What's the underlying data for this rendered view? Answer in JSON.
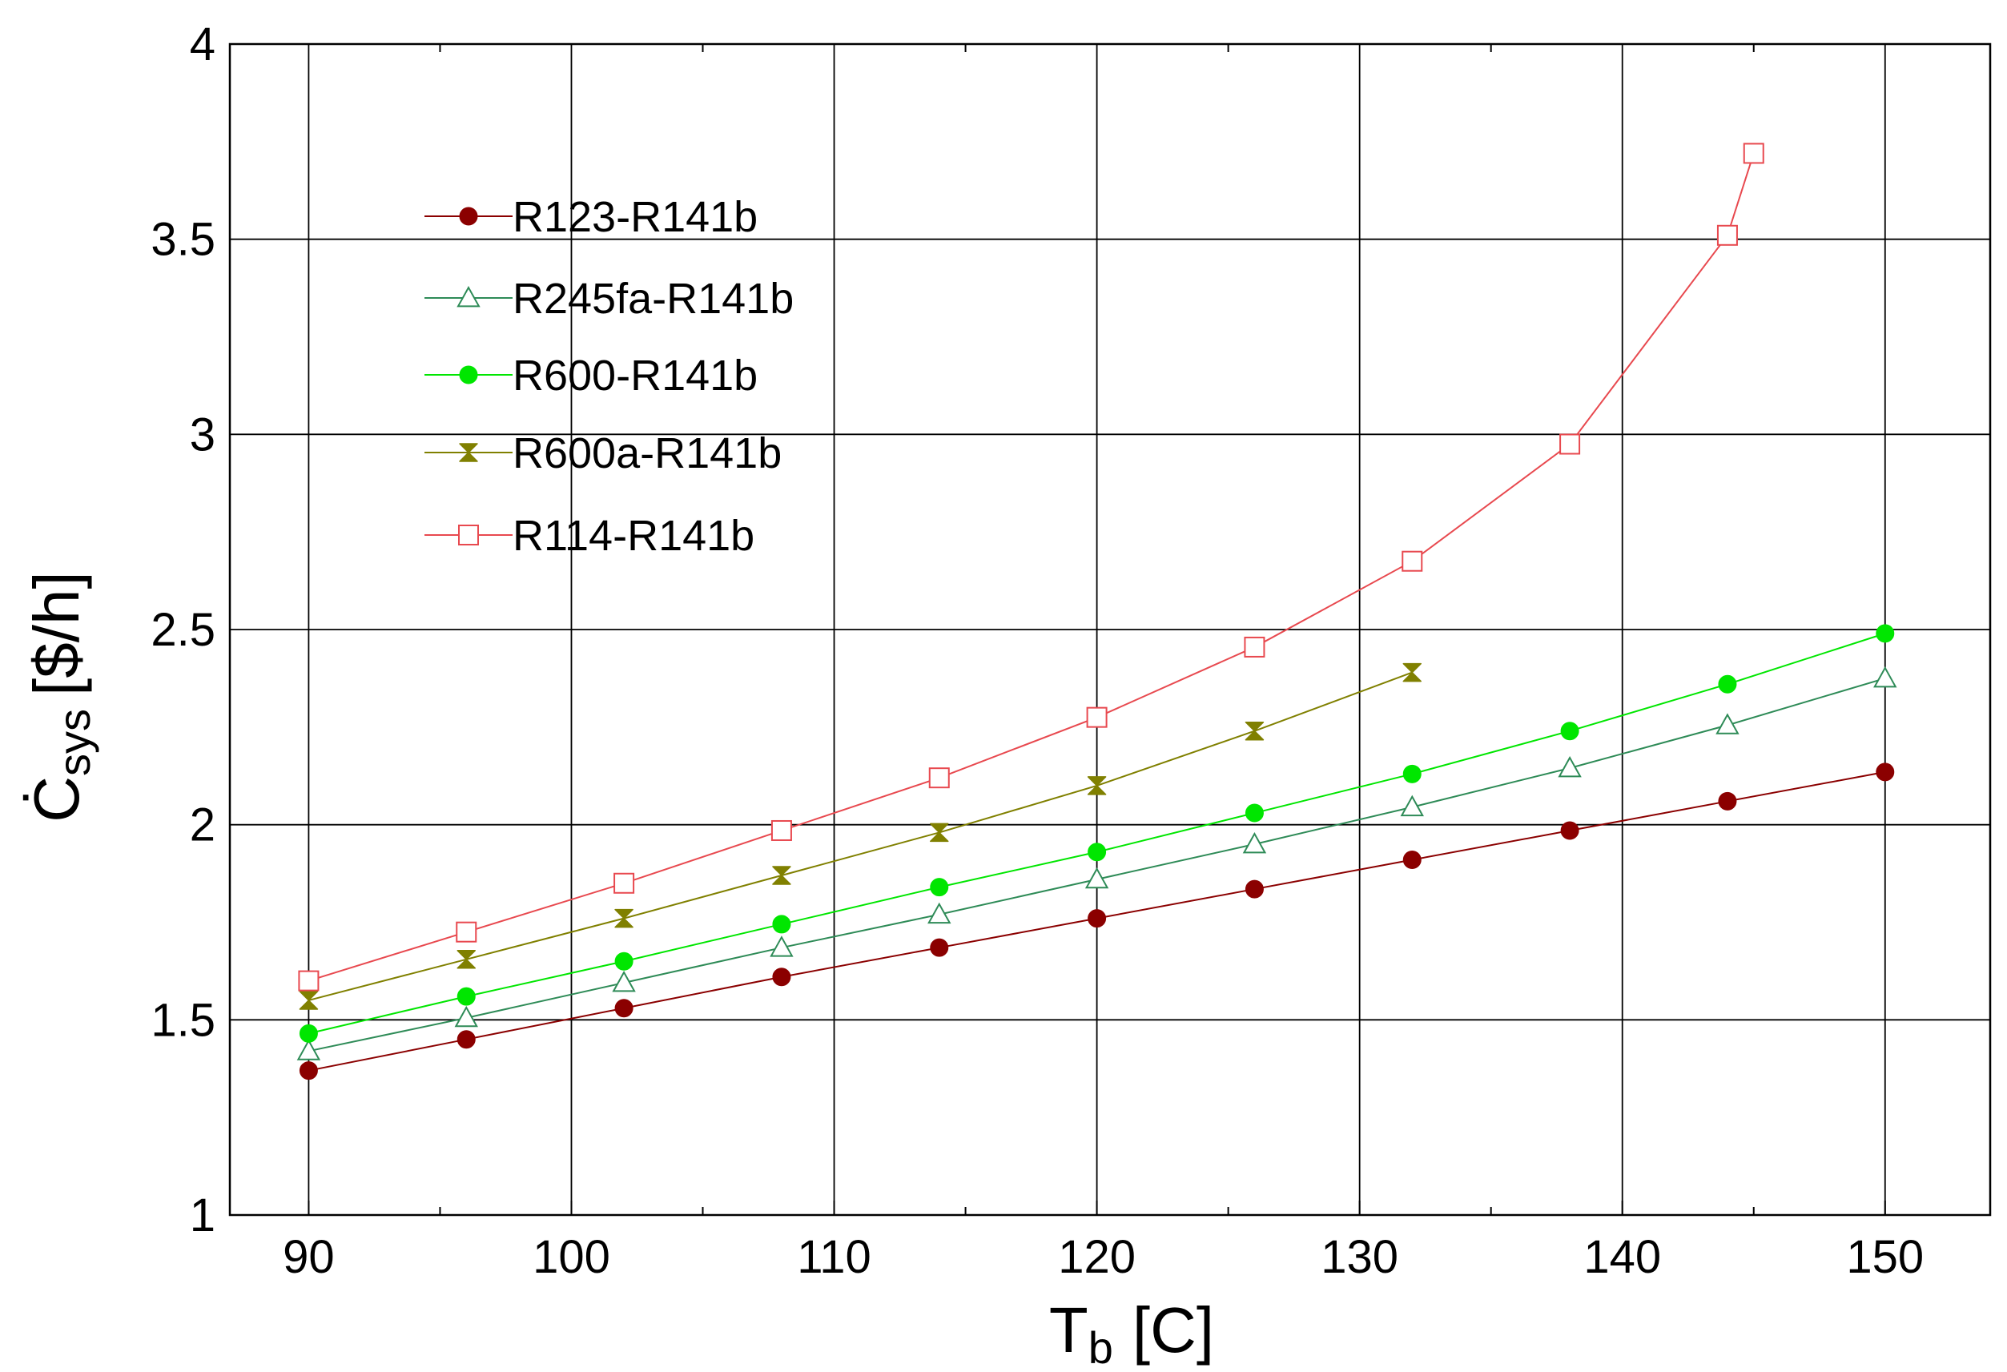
{
  "chart_data": {
    "type": "line",
    "title": "",
    "xlabel": "T_b [C]",
    "xlabel_parts": {
      "main": "T",
      "sub": "b",
      "unit": "[C]"
    },
    "ylabel": "Ċsys [$/h]",
    "ylabel_parts": {
      "main": "Ċ",
      "sub": "sys",
      "unit": "[$/h]"
    },
    "xlim": [
      87,
      154
    ],
    "ylim": [
      1,
      4
    ],
    "xticks": [
      90,
      100,
      110,
      120,
      130,
      140,
      150
    ],
    "xtick_labels": [
      "90",
      "100",
      "110",
      "120",
      "130",
      "140",
      "150"
    ],
    "yticks": [
      1,
      1.5,
      2,
      2.5,
      3,
      3.5,
      4
    ],
    "ytick_labels": [
      "1",
      "1.5",
      "2",
      "2.5",
      "3",
      "3.5",
      "4"
    ],
    "grid": true,
    "legend_position": "top-left",
    "series": [
      {
        "name": "R123-R141b",
        "color": "#8B0000",
        "marker": "filled-circle",
        "x": [
          90,
          96,
          102,
          108,
          114,
          120,
          126,
          132,
          138,
          144,
          150
        ],
        "y": [
          1.37,
          1.45,
          1.53,
          1.61,
          1.685,
          1.76,
          1.835,
          1.91,
          1.985,
          2.06,
          2.135
        ]
      },
      {
        "name": "R245fa-R141b",
        "color": "#2E8B57",
        "marker": "open-triangle",
        "x": [
          90,
          96,
          102,
          108,
          114,
          120,
          126,
          132,
          138,
          144,
          150
        ],
        "y": [
          1.42,
          1.505,
          1.595,
          1.685,
          1.77,
          1.86,
          1.95,
          2.045,
          2.145,
          2.255,
          2.375
        ]
      },
      {
        "name": "R600-R141b",
        "color": "#00E600",
        "marker": "filled-circle",
        "x": [
          90,
          96,
          102,
          108,
          114,
          120,
          126,
          132,
          138,
          144,
          150
        ],
        "y": [
          1.465,
          1.56,
          1.65,
          1.745,
          1.84,
          1.93,
          2.03,
          2.13,
          2.24,
          2.36,
          2.49
        ]
      },
      {
        "name": "R600a-R141b",
        "color": "#808000",
        "marker": "hourglass",
        "x": [
          90,
          96,
          102,
          108,
          114,
          120,
          126,
          132
        ],
        "y": [
          1.55,
          1.655,
          1.76,
          1.87,
          1.98,
          2.1,
          2.24,
          2.39
        ]
      },
      {
        "name": "R114-R141b",
        "color": "#E8494F",
        "marker": "open-square",
        "x": [
          90,
          96,
          102,
          108,
          114,
          120,
          126,
          132,
          138,
          144,
          145
        ],
        "y": [
          1.6,
          1.725,
          1.85,
          1.985,
          2.12,
          2.275,
          2.455,
          2.675,
          2.975,
          3.51,
          3.72
        ]
      }
    ]
  }
}
